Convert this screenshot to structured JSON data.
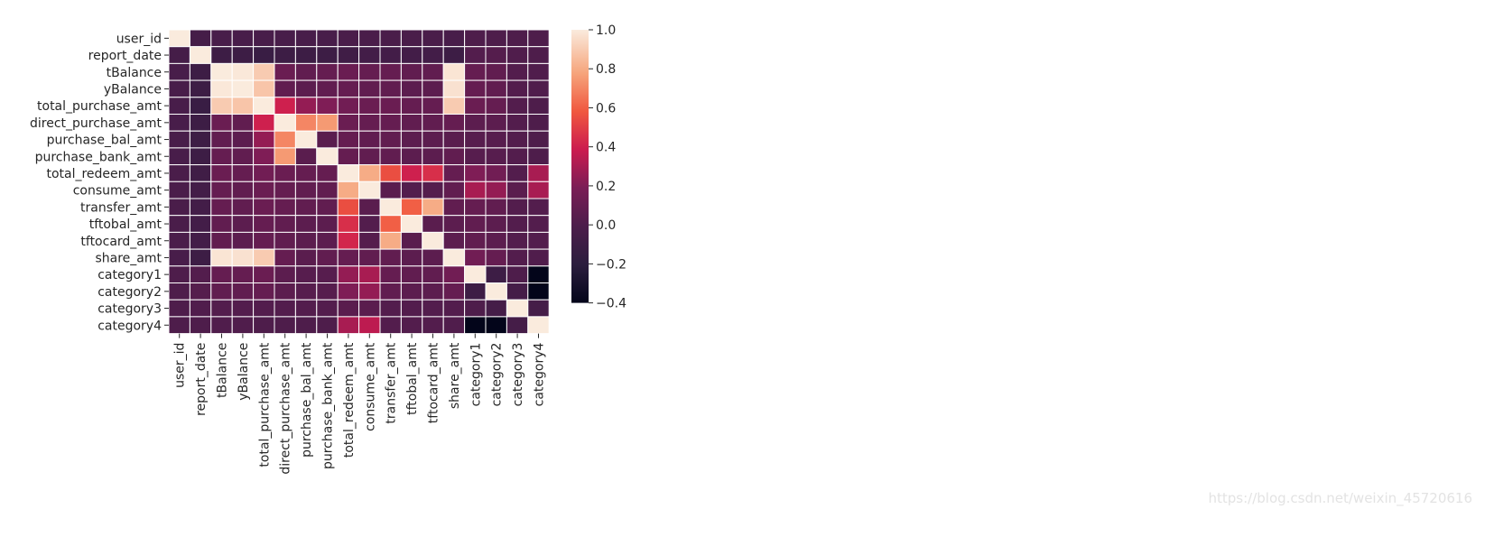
{
  "chart_data": {
    "type": "heatmap",
    "title": "",
    "xlabel": "",
    "ylabel": "",
    "labels": [
      "user_id",
      "report_date",
      "tBalance",
      "yBalance",
      "total_purchase_amt",
      "direct_purchase_amt",
      "purchase_bal_amt",
      "purchase_bank_amt",
      "total_redeem_amt",
      "consume_amt",
      "transfer_amt",
      "tftobal_amt",
      "tftocard_amt",
      "share_amt",
      "category1",
      "category2",
      "category3",
      "category4"
    ],
    "values": [
      [
        1.0,
        -0.05,
        -0.03,
        -0.03,
        -0.03,
        -0.03,
        -0.03,
        -0.03,
        -0.02,
        -0.02,
        -0.02,
        -0.02,
        -0.02,
        -0.03,
        0.0,
        0.0,
        0.0,
        0.0
      ],
      [
        -0.05,
        1.0,
        -0.1,
        -0.1,
        -0.12,
        -0.1,
        -0.1,
        -0.1,
        -0.08,
        -0.06,
        -0.06,
        -0.06,
        -0.06,
        -0.1,
        0.02,
        0.03,
        0.01,
        0.0
      ],
      [
        -0.03,
        -0.1,
        1.0,
        0.99,
        0.9,
        0.12,
        0.08,
        0.1,
        0.12,
        0.1,
        0.1,
        0.08,
        0.08,
        0.98,
        0.1,
        0.08,
        0.02,
        0.01
      ],
      [
        -0.03,
        -0.1,
        0.99,
        1.0,
        0.88,
        0.08,
        0.06,
        0.08,
        0.1,
        0.08,
        0.08,
        0.06,
        0.06,
        0.97,
        0.1,
        0.08,
        0.02,
        0.01
      ],
      [
        -0.03,
        -0.12,
        0.9,
        0.88,
        1.0,
        0.4,
        0.25,
        0.2,
        0.15,
        0.12,
        0.12,
        0.1,
        0.1,
        0.9,
        0.12,
        0.1,
        0.02,
        0.0
      ],
      [
        -0.03,
        -0.1,
        0.12,
        0.08,
        0.4,
        1.0,
        0.7,
        0.75,
        0.12,
        0.1,
        0.1,
        0.08,
        0.08,
        0.1,
        0.06,
        0.06,
        0.02,
        0.0
      ],
      [
        -0.03,
        -0.1,
        0.08,
        0.06,
        0.25,
        0.7,
        1.0,
        0.05,
        0.1,
        0.08,
        0.08,
        0.06,
        0.06,
        0.05,
        0.04,
        0.04,
        0.02,
        0.0
      ],
      [
        -0.03,
        -0.1,
        0.1,
        0.08,
        0.2,
        0.75,
        0.05,
        1.0,
        0.1,
        0.08,
        0.08,
        0.06,
        0.06,
        0.08,
        0.04,
        0.04,
        0.02,
        0.0
      ],
      [
        -0.02,
        -0.08,
        0.12,
        0.1,
        0.15,
        0.12,
        0.1,
        0.1,
        1.0,
        0.8,
        0.55,
        0.4,
        0.45,
        0.1,
        0.2,
        0.15,
        0.02,
        0.3
      ],
      [
        -0.02,
        -0.06,
        0.1,
        0.08,
        0.12,
        0.1,
        0.08,
        0.08,
        0.8,
        1.0,
        0.05,
        0.02,
        0.03,
        0.08,
        0.3,
        0.25,
        0.05,
        0.3
      ],
      [
        -0.02,
        -0.06,
        0.1,
        0.08,
        0.12,
        0.1,
        0.08,
        0.08,
        0.55,
        0.05,
        1.0,
        0.6,
        0.8,
        0.08,
        0.1,
        0.08,
        0.02,
        0.02
      ],
      [
        -0.02,
        -0.06,
        0.08,
        0.06,
        0.1,
        0.08,
        0.06,
        0.06,
        0.45,
        0.02,
        0.6,
        1.0,
        0.05,
        0.06,
        0.08,
        0.06,
        0.02,
        0.02
      ],
      [
        -0.02,
        -0.06,
        0.08,
        0.06,
        0.1,
        0.08,
        0.06,
        0.06,
        0.42,
        0.03,
        0.8,
        0.05,
        1.0,
        0.06,
        0.08,
        0.06,
        0.02,
        0.02
      ],
      [
        -0.03,
        -0.1,
        0.98,
        0.97,
        0.9,
        0.1,
        0.05,
        0.08,
        0.1,
        0.08,
        0.08,
        0.06,
        0.06,
        1.0,
        0.15,
        0.1,
        0.02,
        0.01
      ],
      [
        0.0,
        0.02,
        0.1,
        0.1,
        0.12,
        0.06,
        0.04,
        0.04,
        0.25,
        0.3,
        0.1,
        0.08,
        0.08,
        0.15,
        1.0,
        -0.1,
        0.0,
        -0.4
      ],
      [
        0.0,
        0.03,
        0.08,
        0.08,
        0.1,
        0.06,
        0.04,
        0.04,
        0.2,
        0.25,
        0.08,
        0.06,
        0.06,
        0.1,
        -0.1,
        1.0,
        -0.05,
        -0.4
      ],
      [
        0.0,
        0.01,
        0.02,
        0.02,
        0.02,
        0.02,
        0.02,
        0.02,
        0.05,
        0.05,
        0.02,
        0.02,
        0.02,
        0.02,
        0.0,
        -0.05,
        1.0,
        -0.05
      ],
      [
        0.0,
        0.0,
        0.01,
        0.01,
        0.0,
        0.0,
        0.0,
        0.0,
        0.3,
        0.35,
        0.02,
        0.02,
        0.02,
        0.01,
        -0.4,
        -0.4,
        -0.05,
        1.0
      ]
    ],
    "colorbar": {
      "min": -0.4,
      "max": 1.0,
      "ticks": [
        "−0.4",
        "−0.2",
        "0.0",
        "0.2",
        "0.4",
        "0.6",
        "0.8",
        "1.0"
      ],
      "tick_values": [
        -0.4,
        -0.2,
        0.0,
        0.2,
        0.4,
        0.6,
        0.8,
        1.0
      ]
    },
    "colormap": "rocket",
    "grid_lines": "white",
    "colorbar_position": "right"
  },
  "watermark": "https://blog.csdn.net/weixin_45720616"
}
